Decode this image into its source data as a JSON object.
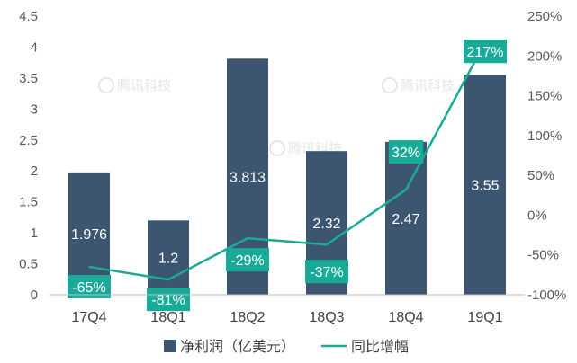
{
  "chart_data": {
    "type": "bar+line",
    "categories": [
      "17Q4",
      "18Q1",
      "18Q2",
      "18Q3",
      "18Q4",
      "19Q1"
    ],
    "series": [
      {
        "name": "净利润（亿美元）",
        "type": "bar",
        "axis": "left",
        "values": [
          1.976,
          1.2,
          3.813,
          2.32,
          2.47,
          3.55
        ],
        "labels": [
          "1.976",
          "1.2",
          "3.813",
          "2.32",
          "2.47",
          "3.55"
        ]
      },
      {
        "name": "同比增幅",
        "type": "line",
        "axis": "right",
        "values": [
          -65,
          -81,
          -29,
          -37,
          32,
          217
        ],
        "labels": [
          "-65%",
          "-81%",
          "-29%",
          "-37%",
          "32%",
          "217%"
        ]
      }
    ],
    "left_axis": {
      "ylim": [
        0,
        4.5
      ],
      "ticks": [
        "0",
        "0.5",
        "1",
        "1.5",
        "2",
        "2.5",
        "3",
        "3.5",
        "4",
        "4.5"
      ]
    },
    "right_axis": {
      "ylim": [
        -100,
        250
      ],
      "ticks": [
        "-100%",
        "-50%",
        "0%",
        "50%",
        "100%",
        "150%",
        "200%",
        "250%"
      ]
    },
    "legend_position": "bottom",
    "watermark": "腾讯科技",
    "colors": {
      "bar": "#3c5570",
      "line": "#1aab98",
      "label_box": "#1aab98"
    }
  }
}
